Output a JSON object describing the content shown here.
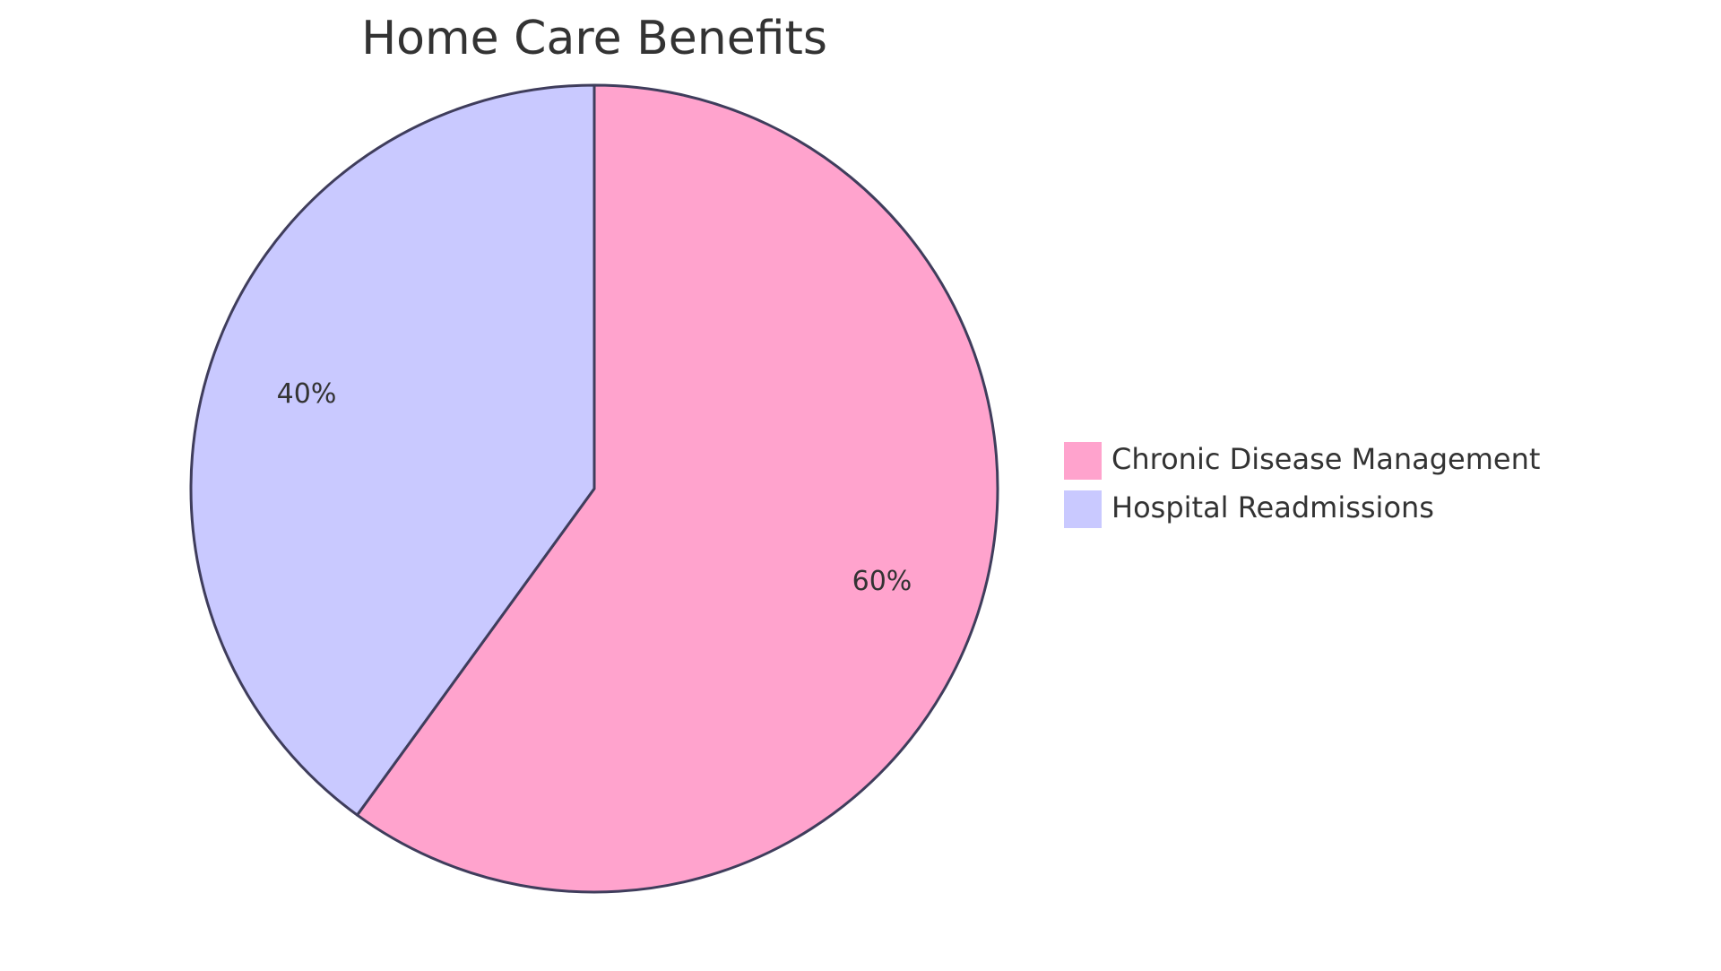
{
  "chart_data": {
    "type": "pie",
    "title": "Home Care Benefits",
    "slices": [
      {
        "label": "Chronic Disease Management",
        "value": 60,
        "display": "60%",
        "color": "#FFA3CD"
      },
      {
        "label": "Hospital Readmissions",
        "value": 40,
        "display": "40%",
        "color": "#C9C9FF"
      }
    ],
    "legend_position": "right",
    "stroke_color": "#3F3D5C",
    "start": "top",
    "direction": "clockwise"
  }
}
